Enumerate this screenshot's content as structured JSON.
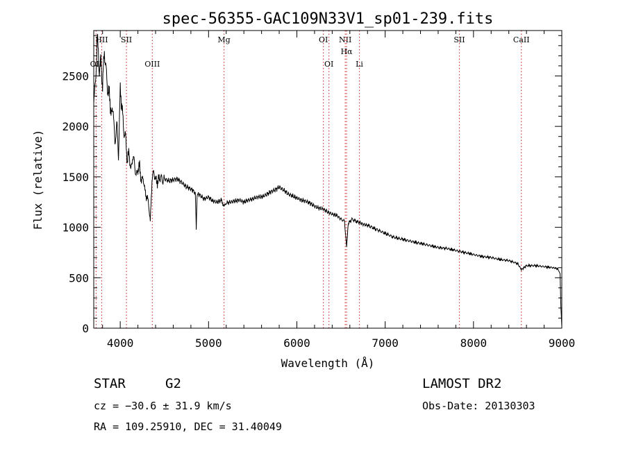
{
  "window": {
    "title": "spec-56355-GAC109N33V1_sp01-239.fits"
  },
  "footer": {
    "object_class": "STAR",
    "subclass": "G2",
    "survey": "LAMOST DR2",
    "cz": "cz = −30.6 ± 31.9 km/s",
    "obs_date": "Obs-Date: 20130303",
    "coords": "RA = 109.25910, DEC =  31.40049"
  },
  "chart_data": {
    "type": "line",
    "title": "spec-56355-GAC109N33V1_sp01-239.fits",
    "xlabel": "Wavelength (Å)",
    "ylabel": "Flux (relative)",
    "xlim": [
      3700,
      9000
    ],
    "ylim": [
      0,
      2950
    ],
    "x_ticks": [
      4000,
      5000,
      6000,
      7000,
      8000,
      9000
    ],
    "y_ticks": [
      0,
      500,
      1000,
      1500,
      2000,
      2500
    ],
    "grid": false,
    "line_color": "#000000",
    "marker_color": "#d43a3a",
    "spectral_lines": [
      {
        "label": "OII",
        "wavelength": 3727,
        "row": "lower"
      },
      {
        "label": "HII",
        "wavelength": 3790,
        "row": "upper"
      },
      {
        "label": "SII",
        "wavelength": 4070,
        "row": "upper"
      },
      {
        "label": "OIII",
        "wavelength": 4363,
        "row": "lower"
      },
      {
        "label": "Mg",
        "wavelength": 5175,
        "row": "upper"
      },
      {
        "label": "OI",
        "wavelength": 6300,
        "row": "upper"
      },
      {
        "label": "OI",
        "wavelength": 6363,
        "row": "lower"
      },
      {
        "label": "NII",
        "wavelength": 6548,
        "row": "upper"
      },
      {
        "label": "Hα",
        "wavelength": 6563,
        "row": "middle"
      },
      {
        "label": "Li",
        "wavelength": 6708,
        "row": "lower"
      },
      {
        "label": "SII",
        "wavelength": 7840,
        "row": "upper"
      },
      {
        "label": "CaII",
        "wavelength": 8542,
        "row": "upper"
      }
    ],
    "series": [
      {
        "x": [
          3700,
          3720,
          3740,
          3760,
          3780,
          3800,
          3820,
          3840,
          3860,
          3880,
          3900,
          3920,
          3940,
          3960,
          3980,
          4000,
          4020,
          4040,
          4060,
          4080,
          4100,
          4120,
          4140,
          4160,
          4180,
          4200,
          4220,
          4240,
          4260,
          4280,
          4300,
          4320,
          4340,
          4360,
          4380,
          4400,
          4420,
          4440,
          4460,
          4480,
          4500,
          4550,
          4600,
          4650,
          4700,
          4750,
          4800,
          4830,
          4850,
          4861,
          4870,
          4900,
          4950,
          5000,
          5050,
          5100,
          5150,
          5175,
          5200,
          5250,
          5300,
          5350,
          5400,
          5450,
          5500,
          5550,
          5600,
          5650,
          5700,
          5750,
          5800,
          5850,
          5900,
          5950,
          6000,
          6050,
          6100,
          6150,
          6200,
          6250,
          6300,
          6350,
          6400,
          6450,
          6500,
          6540,
          6563,
          6580,
          6620,
          6700,
          6750,
          6800,
          6900,
          7000,
          7100,
          7200,
          7300,
          7400,
          7500,
          7600,
          7700,
          7800,
          7900,
          8000,
          8100,
          8200,
          8300,
          8400,
          8500,
          8542,
          8600,
          8700,
          8800,
          8900,
          8950,
          8970,
          8980,
          8990,
          9000
        ],
        "y": [
          2300,
          2400,
          2900,
          2560,
          2650,
          2400,
          2750,
          2550,
          2350,
          2300,
          2100,
          2200,
          1800,
          2050,
          1700,
          2350,
          2200,
          1950,
          1900,
          1650,
          1750,
          1550,
          1700,
          1650,
          1500,
          1580,
          1600,
          1450,
          1500,
          1350,
          1300,
          1250,
          1050,
          1480,
          1550,
          1470,
          1450,
          1480,
          1500,
          1460,
          1480,
          1460,
          1470,
          1480,
          1440,
          1400,
          1380,
          1360,
          1340,
          980,
          1330,
          1320,
          1280,
          1300,
          1260,
          1250,
          1270,
          1200,
          1240,
          1250,
          1260,
          1270,
          1250,
          1270,
          1280,
          1300,
          1300,
          1320,
          1350,
          1370,
          1400,
          1370,
          1330,
          1310,
          1290,
          1270,
          1260,
          1240,
          1210,
          1190,
          1180,
          1150,
          1130,
          1120,
          1080,
          1060,
          800,
          1030,
          1080,
          1050,
          1030,
          1020,
          980,
          940,
          900,
          880,
          860,
          840,
          820,
          800,
          790,
          770,
          750,
          730,
          710,
          700,
          680,
          670,
          640,
          580,
          620,
          620,
          610,
          600,
          590,
          560,
          540,
          200,
          10
        ]
      }
    ]
  }
}
